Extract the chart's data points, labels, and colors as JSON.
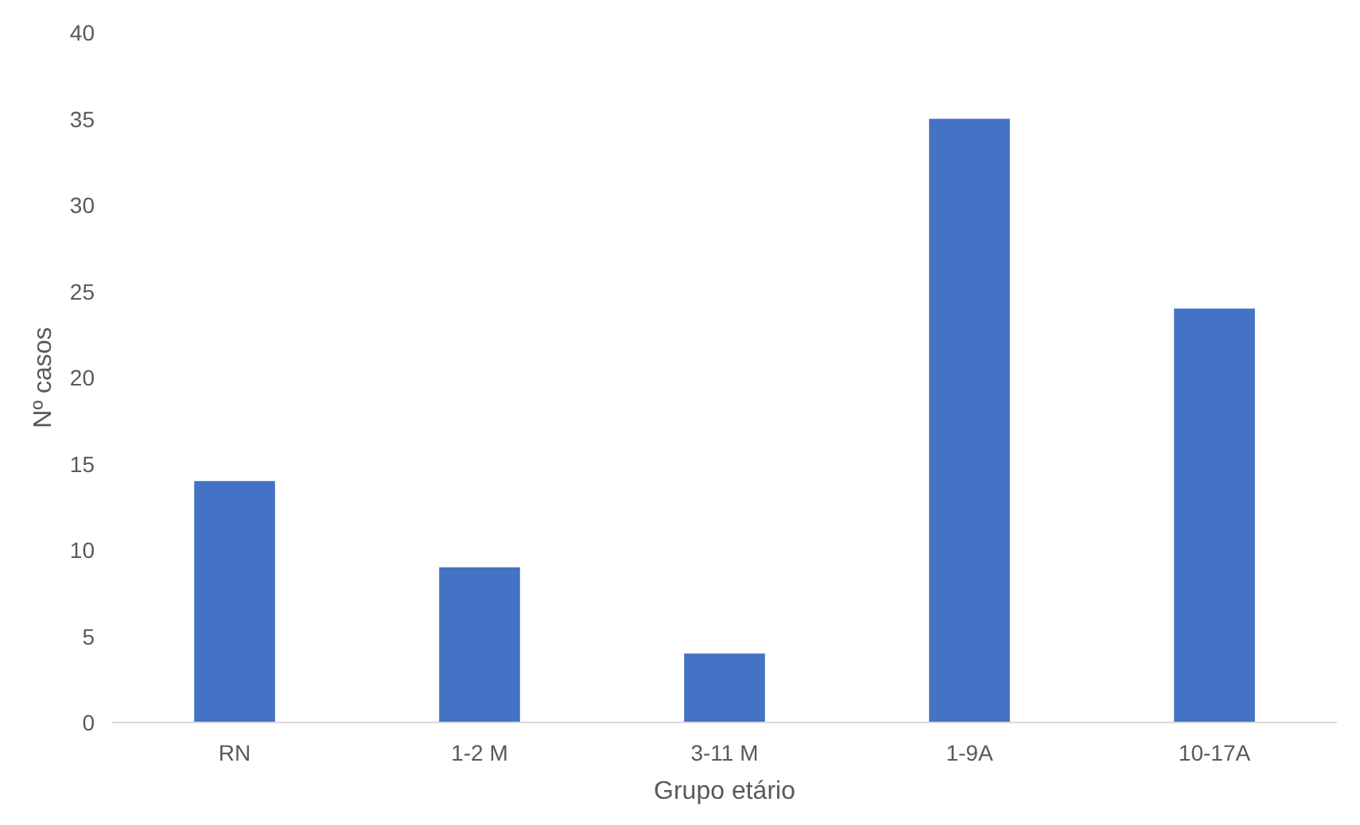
{
  "chart_data": {
    "type": "bar",
    "xlabel": "Grupo etário",
    "ylabel": "Nº casos",
    "categories": [
      "RN",
      "1-2 M",
      "3-11 M",
      "1-9A",
      "10-17A"
    ],
    "values": [
      14,
      9,
      4,
      35,
      24
    ],
    "color": "#4472c4",
    "ylim": [
      0,
      40
    ],
    "yticks": [
      0,
      5,
      10,
      15,
      20,
      25,
      30,
      35,
      40
    ],
    "grid": false
  }
}
